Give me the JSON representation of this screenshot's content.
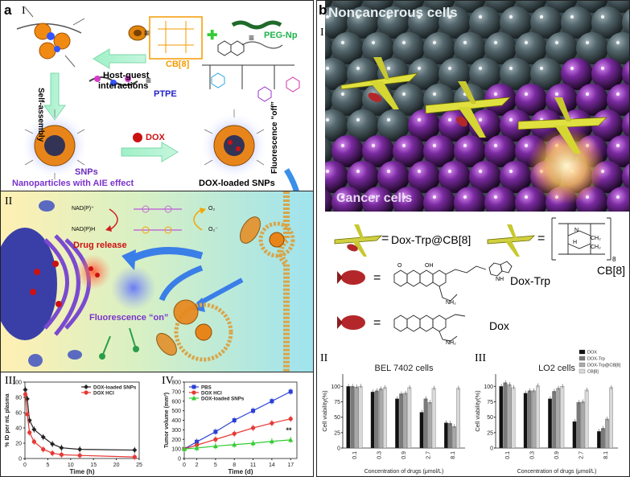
{
  "panel_a": {
    "letter": "a",
    "sub_I": "I",
    "sub_II": "II",
    "sub_III": "III",
    "sub_IV": "IV",
    "cb8_label": "CB[8]",
    "pegnp_label": "PEG-Np",
    "ptpe_label": "PTPE",
    "hostguest_label1": "Host-guest",
    "hostguest_label2": "interactions",
    "selfassembly_label": "Self-assembly",
    "dox_label": "DOX",
    "snps_label": "SNPs",
    "aie_label": "Nanoparticles with AIE effect",
    "doxloaded_label": "DOX-loaded SNPs",
    "fluoro_off_label": "Fluorescence “off”",
    "nadp_plus": "NAD(P)⁺",
    "nadph": "NAD(P)H",
    "o2": "O₂",
    "o2_minus": "O₂⁻",
    "drug_release": "Drug release",
    "fluoro_on": "Fluorescence “on”",
    "symbols": {
      "equiv": "≡",
      "plus": "✚"
    },
    "colors": {
      "cb8": "#f59a00",
      "pegnp": "#1db34a",
      "ptpe": "#2222cc",
      "aie": "#7a33cc",
      "dox": "#cc1111",
      "snps": "#6a2cbf"
    }
  },
  "panel_b": {
    "letter": "b",
    "sub_I": "I",
    "sub_II": "II",
    "sub_III": "III",
    "noncancer": "Noncancerous cells",
    "cancer": "Cancer cells",
    "doxtrp_cb8": "Dox-Trp@CB[8]",
    "cb8": "CB[8]",
    "doxtrp": "Dox-Trp",
    "dox": "Dox",
    "equals": "=",
    "cb8_sub": "8",
    "chem": {
      "ch2": "CH₂",
      "n": "N",
      "h": "H",
      "nh2": "NH₂",
      "oh": "OH",
      "o": "O",
      "nh": "NH"
    }
  },
  "chart_data": [
    {
      "type": "line",
      "xlabel": "Time (h)",
      "ylabel": "% ID per mL plasma",
      "xlim": [
        0,
        25
      ],
      "ylim": [
        0,
        100
      ],
      "xticks": [
        "0",
        "5",
        "10",
        "15",
        "20",
        "25"
      ],
      "yticks": [
        "0",
        "20",
        "40",
        "60",
        "80",
        "100"
      ],
      "legend": "top-right",
      "series": [
        {
          "name": "DOX-loaded SNPs",
          "color": "#222222",
          "marker": "diamond",
          "x": [
            0.083,
            0.5,
            1,
            2,
            4,
            6,
            8,
            12,
            24
          ],
          "y": [
            90,
            78,
            50,
            38,
            28,
            19,
            14,
            12,
            11
          ]
        },
        {
          "name": "DOX HCl",
          "color": "#e53935",
          "marker": "circle",
          "x": [
            0.083,
            0.5,
            1,
            2,
            4,
            6,
            8,
            12,
            24
          ],
          "y": [
            84,
            58,
            34,
            22,
            12,
            7,
            5,
            4,
            2
          ]
        }
      ]
    },
    {
      "type": "line",
      "xlabel": "Time (d)",
      "ylabel": "Tumor volume (mm³)",
      "xlim": [
        0,
        18
      ],
      "ylim": [
        0,
        800
      ],
      "xticks": [
        "0",
        "2",
        "5",
        "8",
        "11",
        "14",
        "17"
      ],
      "xtick_values": [
        0,
        2,
        5,
        8,
        11,
        14,
        17
      ],
      "yticks": [
        "0",
        "100",
        "200",
        "300",
        "400",
        "500",
        "600",
        "700",
        "800"
      ],
      "legend": "top-left",
      "annotation": "**",
      "series": [
        {
          "name": "PBS",
          "color": "#2a3fd6",
          "marker": "square",
          "x": [
            0,
            2,
            5,
            8,
            11,
            14,
            17
          ],
          "y": [
            100,
            175,
            280,
            400,
            500,
            600,
            700
          ]
        },
        {
          "name": "DOX HCl",
          "color": "#e53935",
          "marker": "circle",
          "x": [
            0,
            2,
            5,
            8,
            11,
            14,
            17
          ],
          "y": [
            100,
            140,
            200,
            260,
            320,
            370,
            415
          ]
        },
        {
          "name": "DOX-loaded SNPs",
          "color": "#33cc33",
          "marker": "triangle",
          "x": [
            0,
            2,
            5,
            8,
            11,
            14,
            17
          ],
          "y": [
            100,
            110,
            130,
            145,
            160,
            180,
            195
          ]
        }
      ]
    },
    {
      "type": "bar",
      "title": "BEL 7402 cells",
      "xlabel": "Concentration of drugs (μmol/L)",
      "ylabel": "Cell viability(%)",
      "ylim": [
        0,
        120
      ],
      "yticks": [
        "0",
        "25",
        "50",
        "75",
        "100"
      ],
      "categories": [
        "0.1",
        "0.3",
        "0.9",
        "2.7",
        "8.1"
      ],
      "series": [
        {
          "name": "DOX",
          "color": "#111111",
          "values": [
            100,
            91,
            80,
            58,
            41
          ]
        },
        {
          "name": "DOX-Trp",
          "color": "#7a7a7a",
          "values": [
            100,
            93,
            88,
            80,
            40
          ]
        },
        {
          "name": "DOX-Trp@CB[8]",
          "color": "#a9a9a9",
          "values": [
            99,
            96,
            89,
            74,
            35
          ]
        },
        {
          "name": "CB[8]",
          "color": "#d9d9d9",
          "values": [
            100,
            98,
            98,
            97,
            97
          ]
        }
      ]
    },
    {
      "type": "bar",
      "title": "LO2 cells",
      "xlabel": "Concentration of drugs (μmol/L)",
      "ylabel": "Cell viability(%)",
      "ylim": [
        0,
        120
      ],
      "yticks": [
        "0",
        "25",
        "50",
        "75",
        "100"
      ],
      "categories": [
        "0.1",
        "0.3",
        "0.9",
        "2.7",
        "8.1"
      ],
      "legend": "top-right",
      "series": [
        {
          "name": "DOX",
          "color": "#111111",
          "values": [
            100,
            89,
            80,
            43,
            27
          ]
        },
        {
          "name": "DOX-Trp",
          "color": "#7a7a7a",
          "values": [
            106,
            93,
            92,
            74,
            32
          ]
        },
        {
          "name": "DOX-Trp@CB[8]",
          "color": "#a9a9a9",
          "values": [
            103,
            93,
            97,
            75,
            47
          ]
        },
        {
          "name": "CB[8]",
          "color": "#d9d9d9",
          "values": [
            98,
            101,
            100,
            94,
            98
          ]
        }
      ]
    }
  ]
}
